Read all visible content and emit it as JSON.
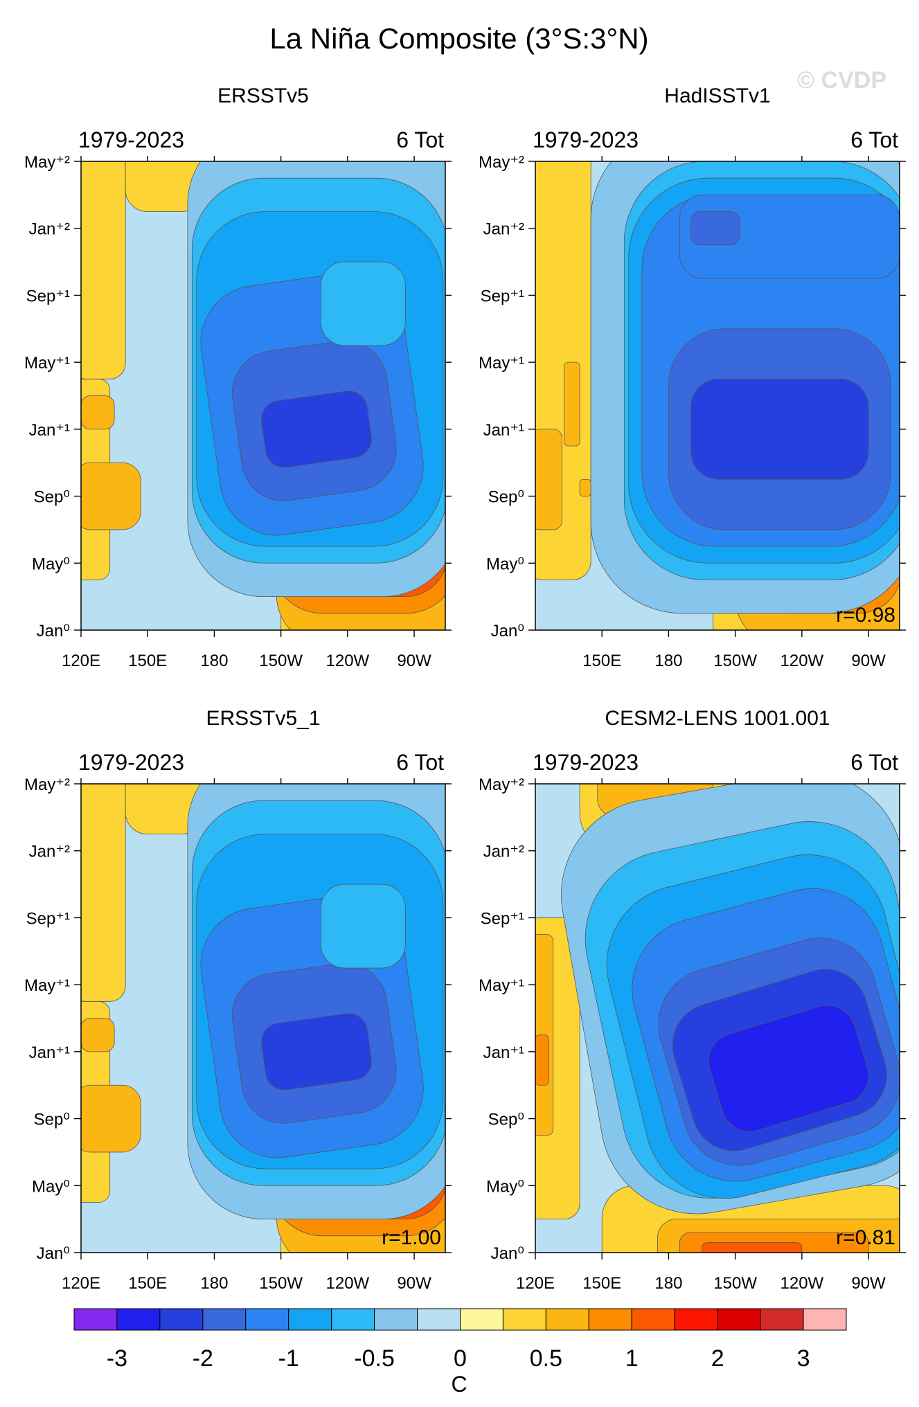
{
  "figure": {
    "title": "La Niña Composite (3°S:3°N)",
    "watermark": "© CVDP"
  },
  "colorbar": {
    "unit": "C",
    "colors": [
      "#8228ef",
      "#2020ef",
      "#2640e0",
      "#3a68dd",
      "#2b84f2",
      "#14a4f5",
      "#2cb9f5",
      "#86c6ed",
      "#b8dff2",
      "#fcf89b",
      "#fcd535",
      "#fcb614",
      "#fc8d00",
      "#fc5a00",
      "#fc1600",
      "#dc0000",
      "#d52a2a",
      "#fcb4b4"
    ],
    "tick_labels": [
      "-3",
      "-2",
      "-1",
      "-0.5",
      "0",
      "0.5",
      "1",
      "2",
      "3"
    ]
  },
  "chart_data": [
    {
      "type": "heatmap",
      "title": "ERSSTv5",
      "subtitle_left": "1979-2023",
      "subtitle_right": "6 Tot",
      "x_tick_labels": [
        "120E",
        "150E",
        "180",
        "150W",
        "120W",
        "90W"
      ],
      "x_ticks_deg": [
        120,
        150,
        180,
        210,
        240,
        270
      ],
      "xlim": [
        120,
        284
      ],
      "y_tick_labels": [
        "Jan⁰",
        "May⁰",
        "Sep⁰",
        "Jan⁺¹",
        "May⁺¹",
        "Sep⁺¹",
        "Jan⁺²",
        "May⁺²"
      ],
      "y_ticks_month": [
        0,
        4,
        8,
        12,
        16,
        20,
        24,
        28
      ],
      "ylim": [
        0,
        28
      ],
      "blobs": [
        {
          "level": 1,
          "lon": [
            210,
            292
          ],
          "month": [
            -3,
            17
          ],
          "angle": 0
        },
        {
          "level": 2,
          "lon": [
            208,
            292
          ],
          "month": [
            -1,
            15
          ],
          "angle": 0
        },
        {
          "level": 3,
          "lon": [
            205,
            290
          ],
          "month": [
            1,
            13
          ],
          "angle": 0
        },
        {
          "level": 4,
          "lon": [
            205,
            285
          ],
          "month": [
            2,
            11
          ],
          "angle": 0
        },
        {
          "level": 5,
          "lon": [
            215,
            275
          ],
          "month": [
            3,
            9
          ],
          "angle": 0
        },
        {
          "level": 1,
          "lon": [
            115,
            133
          ],
          "month": [
            3,
            15
          ],
          "angle": 0
        },
        {
          "level": 1,
          "lon": [
            115,
            140
          ],
          "month": [
            15,
            32
          ],
          "angle": 0
        },
        {
          "level": 2,
          "lon": [
            116,
            147
          ],
          "month": [
            6,
            10
          ],
          "angle": 0
        },
        {
          "level": 2,
          "lon": [
            120,
            135
          ],
          "month": [
            12,
            14
          ],
          "angle": 0
        },
        {
          "level": 1,
          "lon": [
            140,
            175
          ],
          "month": [
            25,
            32
          ],
          "angle": 0
        },
        {
          "level": 1,
          "lon": [
            240,
            290
          ],
          "month": [
            25,
            30
          ],
          "angle": 0
        },
        {
          "level": -1,
          "lon": [
            168,
            290
          ],
          "month": [
            2,
            30
          ],
          "angle": 0
        },
        {
          "level": -2,
          "lon": [
            170,
            285
          ],
          "month": [
            4,
            27
          ],
          "angle": 0
        },
        {
          "level": -3,
          "lon": [
            172,
            283
          ],
          "month": [
            5,
            25
          ],
          "angle": 0
        },
        {
          "level": -4,
          "lon": [
            178,
            270
          ],
          "month": [
            6,
            21
          ],
          "angle": -8
        },
        {
          "level": -5,
          "lon": [
            190,
            260
          ],
          "month": [
            8,
            17
          ],
          "angle": -8
        },
        {
          "level": -6,
          "lon": [
            202,
            250
          ],
          "month": [
            10,
            14
          ],
          "angle": -8
        },
        {
          "level": -2,
          "lon": [
            228,
            266
          ],
          "month": [
            17,
            22
          ],
          "angle": 0
        }
      ],
      "r_label": ""
    },
    {
      "type": "heatmap",
      "title": "HadISSTv1",
      "subtitle_left": "1979-2023",
      "subtitle_right": "6 Tot",
      "x_tick_labels": [
        "150E",
        "180",
        "150W",
        "120W",
        "90W"
      ],
      "x_ticks_deg": [
        150,
        180,
        210,
        240,
        270
      ],
      "xlim": [
        120,
        284
      ],
      "y_tick_labels": [
        "Jan⁰",
        "May⁰",
        "Sep⁰",
        "Jan⁺¹",
        "May⁺¹",
        "Sep⁺¹",
        "Jan⁺²",
        "May⁺²"
      ],
      "y_ticks_month": [
        0,
        4,
        8,
        12,
        16,
        20,
        24,
        28
      ],
      "ylim": [
        0,
        28
      ],
      "blobs": [
        {
          "level": 1,
          "lon": [
            200,
            292
          ],
          "month": [
            -3,
            18
          ],
          "angle": 0
        },
        {
          "level": 2,
          "lon": [
            210,
            290
          ],
          "month": [
            -1,
            15
          ],
          "angle": 0
        },
        {
          "level": 3,
          "lon": [
            215,
            285
          ],
          "month": [
            1,
            12
          ],
          "angle": 0
        },
        {
          "level": 4,
          "lon": [
            230,
            270
          ],
          "month": [
            2,
            8
          ],
          "angle": 0
        },
        {
          "level": 1,
          "lon": [
            115,
            145
          ],
          "month": [
            3,
            30
          ],
          "angle": 0
        },
        {
          "level": 2,
          "lon": [
            118,
            132
          ],
          "month": [
            6,
            12
          ],
          "angle": 0
        },
        {
          "level": 2,
          "lon": [
            133,
            140
          ],
          "month": [
            11,
            16
          ],
          "angle": 0
        },
        {
          "level": 2,
          "lon": [
            140,
            145
          ],
          "month": [
            8,
            9
          ],
          "angle": 0
        },
        {
          "level": -1,
          "lon": [
            145,
            292
          ],
          "month": [
            1,
            30
          ],
          "angle": 0
        },
        {
          "level": -2,
          "lon": [
            160,
            290
          ],
          "month": [
            3,
            28
          ],
          "angle": 0
        },
        {
          "level": -3,
          "lon": [
            162,
            290
          ],
          "month": [
            4,
            27
          ],
          "angle": 0
        },
        {
          "level": -4,
          "lon": [
            168,
            286
          ],
          "month": [
            5,
            26
          ],
          "angle": 0
        },
        {
          "level": -5,
          "lon": [
            180,
            280
          ],
          "month": [
            6,
            18
          ],
          "angle": 0
        },
        {
          "level": -6,
          "lon": [
            190,
            270
          ],
          "month": [
            9,
            15
          ],
          "angle": 0
        },
        {
          "level": -4,
          "lon": [
            185,
            284
          ],
          "month": [
            21,
            26
          ],
          "angle": 0
        },
        {
          "level": -5,
          "lon": [
            190,
            212
          ],
          "month": [
            23,
            25
          ],
          "angle": 0
        }
      ],
      "r_label": "r=0.98"
    },
    {
      "type": "heatmap",
      "title": "ERSSTv5_1",
      "subtitle_left": "1979-2023",
      "subtitle_right": "6 Tot",
      "x_tick_labels": [
        "120E",
        "150E",
        "180",
        "150W",
        "120W",
        "90W"
      ],
      "x_ticks_deg": [
        120,
        150,
        180,
        210,
        240,
        270
      ],
      "xlim": [
        120,
        284
      ],
      "y_tick_labels": [
        "Jan⁰",
        "May⁰",
        "Sep⁰",
        "Jan⁺¹",
        "May⁺¹",
        "Sep⁺¹",
        "Jan⁺²",
        "May⁺²"
      ],
      "y_ticks_month": [
        0,
        4,
        8,
        12,
        16,
        20,
        24,
        28
      ],
      "ylim": [
        0,
        28
      ],
      "blobs": [
        {
          "level": 1,
          "lon": [
            210,
            292
          ],
          "month": [
            -3,
            17
          ],
          "angle": 0
        },
        {
          "level": 2,
          "lon": [
            208,
            292
          ],
          "month": [
            -1,
            15
          ],
          "angle": 0
        },
        {
          "level": 3,
          "lon": [
            205,
            290
          ],
          "month": [
            1,
            13
          ],
          "angle": 0
        },
        {
          "level": 4,
          "lon": [
            205,
            285
          ],
          "month": [
            2,
            11
          ],
          "angle": 0
        },
        {
          "level": 5,
          "lon": [
            215,
            275
          ],
          "month": [
            3,
            9
          ],
          "angle": 0
        },
        {
          "level": 1,
          "lon": [
            115,
            133
          ],
          "month": [
            3,
            15
          ],
          "angle": 0
        },
        {
          "level": 1,
          "lon": [
            115,
            140
          ],
          "month": [
            15,
            32
          ],
          "angle": 0
        },
        {
          "level": 2,
          "lon": [
            116,
            147
          ],
          "month": [
            6,
            10
          ],
          "angle": 0
        },
        {
          "level": 2,
          "lon": [
            120,
            135
          ],
          "month": [
            12,
            14
          ],
          "angle": 0
        },
        {
          "level": 1,
          "lon": [
            140,
            175
          ],
          "month": [
            25,
            32
          ],
          "angle": 0
        },
        {
          "level": 1,
          "lon": [
            240,
            290
          ],
          "month": [
            25,
            30
          ],
          "angle": 0
        },
        {
          "level": -1,
          "lon": [
            168,
            290
          ],
          "month": [
            2,
            30
          ],
          "angle": 0
        },
        {
          "level": -2,
          "lon": [
            170,
            285
          ],
          "month": [
            4,
            27
          ],
          "angle": 0
        },
        {
          "level": -3,
          "lon": [
            172,
            283
          ],
          "month": [
            5,
            25
          ],
          "angle": 0
        },
        {
          "level": -4,
          "lon": [
            178,
            270
          ],
          "month": [
            6,
            21
          ],
          "angle": -8
        },
        {
          "level": -5,
          "lon": [
            190,
            260
          ],
          "month": [
            8,
            17
          ],
          "angle": -8
        },
        {
          "level": -6,
          "lon": [
            202,
            250
          ],
          "month": [
            10,
            14
          ],
          "angle": -8
        },
        {
          "level": -2,
          "lon": [
            228,
            266
          ],
          "month": [
            17,
            22
          ],
          "angle": 0
        }
      ],
      "r_label": "r=1.00"
    },
    {
      "type": "heatmap",
      "title": "CESM2-LENS 1001.001",
      "subtitle_left": "1979-2023",
      "subtitle_right": "6 Tot",
      "x_tick_labels": [
        "120E",
        "150E",
        "180",
        "150W",
        "120W",
        "90W"
      ],
      "x_ticks_deg": [
        120,
        150,
        180,
        210,
        240,
        270
      ],
      "xlim": [
        120,
        284
      ],
      "y_tick_labels": [
        "Jan⁰",
        "May⁰",
        "Sep⁰",
        "Jan⁺¹",
        "May⁺¹",
        "Sep⁺¹",
        "Jan⁺²",
        "May⁺²"
      ],
      "y_ticks_month": [
        0,
        4,
        8,
        12,
        16,
        20,
        24,
        28
      ],
      "ylim": [
        0,
        28
      ],
      "blobs": [
        {
          "level": 1,
          "lon": [
            150,
            292
          ],
          "month": [
            -3,
            4
          ],
          "angle": 0
        },
        {
          "level": 2,
          "lon": [
            175,
            292
          ],
          "month": [
            -2,
            2
          ],
          "angle": 0
        },
        {
          "level": 3,
          "lon": [
            185,
            270
          ],
          "month": [
            -1,
            1.2
          ],
          "angle": 0
        },
        {
          "level": 4,
          "lon": [
            195,
            240
          ],
          "month": [
            -0.5,
            0.6
          ],
          "angle": 0
        },
        {
          "level": 1,
          "lon": [
            115,
            140
          ],
          "month": [
            2,
            20
          ],
          "angle": 0
        },
        {
          "level": 2,
          "lon": [
            118,
            128
          ],
          "month": [
            7,
            19
          ],
          "angle": 0
        },
        {
          "level": 3,
          "lon": [
            120,
            126
          ],
          "month": [
            10,
            13
          ],
          "angle": 0
        },
        {
          "level": 1,
          "lon": [
            140,
            215
          ],
          "month": [
            24,
            32
          ],
          "angle": 0
        },
        {
          "level": 2,
          "lon": [
            148,
            200
          ],
          "month": [
            26,
            30
          ],
          "angle": 0
        },
        {
          "level": 1,
          "lon": [
            230,
            285
          ],
          "month": [
            19,
            24
          ],
          "angle": 0
        },
        {
          "level": -1,
          "lon": [
            140,
            295
          ],
          "month": [
            3,
            28
          ],
          "angle": -10
        },
        {
          "level": -2,
          "lon": [
            150,
            292
          ],
          "month": [
            4,
            25
          ],
          "angle": -12
        },
        {
          "level": -3,
          "lon": [
            160,
            288
          ],
          "month": [
            4,
            23
          ],
          "angle": -14
        },
        {
          "level": -4,
          "lon": [
            170,
            285
          ],
          "month": [
            5,
            21
          ],
          "angle": -15
        },
        {
          "level": -5,
          "lon": [
            180,
            280
          ],
          "month": [
            6,
            18
          ],
          "angle": -16
        },
        {
          "level": -6,
          "lon": [
            185,
            275
          ],
          "month": [
            7,
            16
          ],
          "angle": -17
        },
        {
          "level": -7,
          "lon": [
            200,
            268
          ],
          "month": [
            8,
            14
          ],
          "angle": -17
        }
      ],
      "r_label": "r=0.81"
    }
  ]
}
